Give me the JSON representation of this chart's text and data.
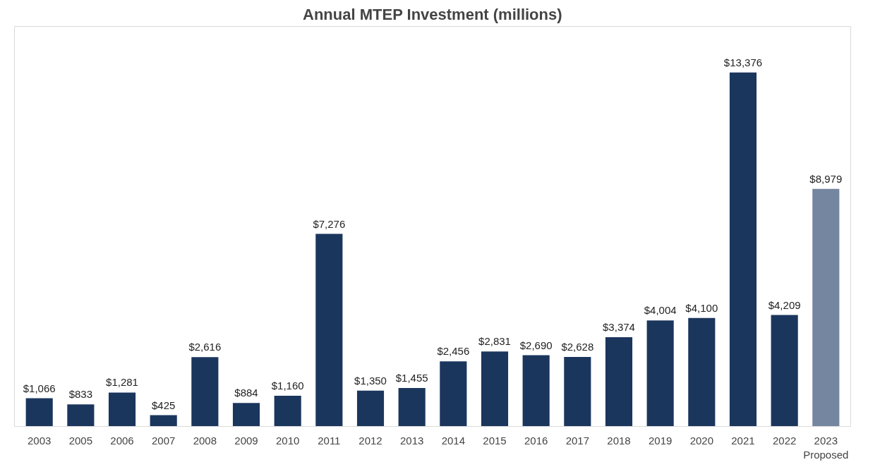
{
  "chart_data": {
    "type": "bar",
    "title": "Annual MTEP Investment (millions)",
    "categories": [
      "2003",
      "2005",
      "2006",
      "2007",
      "2008",
      "2009",
      "2010",
      "2011",
      "2012",
      "2013",
      "2014",
      "2015",
      "2016",
      "2017",
      "2018",
      "2019",
      "2020",
      "2021",
      "2022",
      "2023\nProposed"
    ],
    "values": [
      1066,
      833,
      1281,
      425,
      2616,
      884,
      1160,
      7276,
      1350,
      1455,
      2456,
      2831,
      2690,
      2628,
      3374,
      4004,
      4100,
      13376,
      4209,
      8979
    ],
    "value_labels": [
      "$1,066",
      "$833",
      "$1,281",
      "$425",
      "$2,616",
      "$884",
      "$1,160",
      "$7,276",
      "$1,350",
      "$1,455",
      "$2,456",
      "$2,831",
      "$2,690",
      "$2,628",
      "$3,374",
      "$4,004",
      "$4,100",
      "$13,376",
      "$4,209",
      "$8,979"
    ],
    "colors": [
      "#1b365d",
      "#1b365d",
      "#1b365d",
      "#1b365d",
      "#1b365d",
      "#1b365d",
      "#1b365d",
      "#1b365d",
      "#1b365d",
      "#1b365d",
      "#1b365d",
      "#1b365d",
      "#1b365d",
      "#1b365d",
      "#1b365d",
      "#1b365d",
      "#1b365d",
      "#1b365d",
      "#1b365d",
      "#7586a0"
    ],
    "grid": false
  }
}
